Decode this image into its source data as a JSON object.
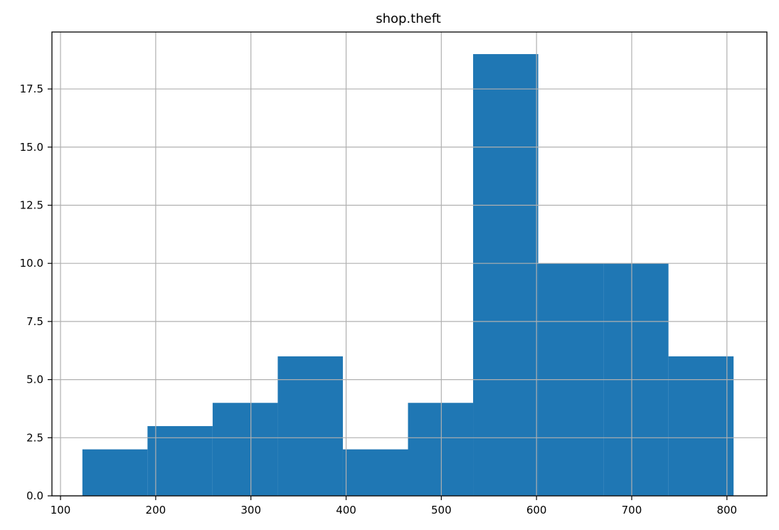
{
  "chart_data": {
    "type": "bar",
    "title": "shop.theft",
    "xlabel": "",
    "ylabel": "",
    "xlim": [
      91,
      842
    ],
    "ylim": [
      0,
      19.95
    ],
    "xticks": [
      100,
      200,
      300,
      400,
      500,
      600,
      700,
      800
    ],
    "yticks": [
      0.0,
      2.5,
      5.0,
      7.5,
      10.0,
      12.5,
      15.0,
      17.5
    ],
    "xtick_labels": [
      "100",
      "200",
      "300",
      "400",
      "500",
      "600",
      "700",
      "800"
    ],
    "ytick_labels": [
      "0.0",
      "2.5",
      "5.0",
      "7.5",
      "10.0",
      "12.5",
      "15.0",
      "17.5"
    ],
    "grid": true,
    "bins": [
      {
        "x0": 123,
        "x1": 191.4,
        "count": 2
      },
      {
        "x0": 191.4,
        "x1": 259.8,
        "count": 3
      },
      {
        "x0": 259.8,
        "x1": 328.2,
        "count": 4
      },
      {
        "x0": 328.2,
        "x1": 396.6,
        "count": 6
      },
      {
        "x0": 396.6,
        "x1": 465.0,
        "count": 2
      },
      {
        "x0": 465.0,
        "x1": 533.4,
        "count": 4
      },
      {
        "x0": 533.4,
        "x1": 601.8,
        "count": 19
      },
      {
        "x0": 601.8,
        "x1": 670.2,
        "count": 10
      },
      {
        "x0": 670.2,
        "x1": 738.6,
        "count": 10
      },
      {
        "x0": 738.6,
        "x1": 807.0,
        "count": 6
      }
    ],
    "bar_color": "#1f77b4"
  }
}
